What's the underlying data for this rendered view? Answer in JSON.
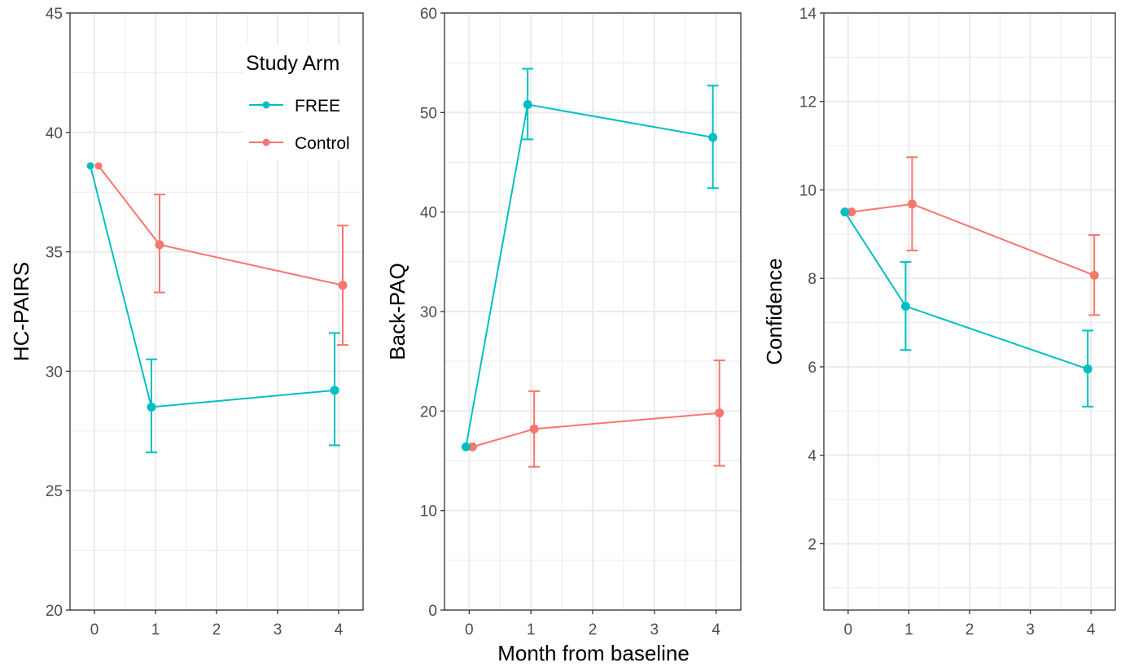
{
  "colors": {
    "free": "#00BFC4",
    "control": "#F8766D",
    "grid": "#EBEBEB",
    "frame": "#333333"
  },
  "legend": {
    "title": "Study Arm",
    "placement": "top-right of first panel",
    "items": [
      {
        "label": "FREE",
        "color": "#00BFC4"
      },
      {
        "label": "Control",
        "color": "#F8766D"
      }
    ]
  },
  "shared_x_title": "Month from baseline",
  "chart_data": [
    {
      "type": "line",
      "ylabel": "HC-PAIRS",
      "xlabel": "",
      "x_ticks": [
        "0",
        "1",
        "2",
        "3",
        "4"
      ],
      "xlim": [
        -0.4,
        4.4
      ],
      "ylim": [
        20,
        45
      ],
      "y_ticks": [
        "20",
        "25",
        "30",
        "35",
        "40",
        "45"
      ],
      "grid": true,
      "error_bars": true,
      "series": [
        {
          "name": "FREE",
          "color": "#00BFC4",
          "x": [
            0,
            1,
            4
          ],
          "y": [
            38.6,
            28.5,
            29.2
          ],
          "err_low": [
            null,
            26.6,
            26.9
          ],
          "err_high": [
            null,
            30.5,
            31.6
          ]
        },
        {
          "name": "Control",
          "color": "#F8766D",
          "x": [
            0,
            1,
            4
          ],
          "y": [
            38.6,
            35.3,
            33.6
          ],
          "err_low": [
            null,
            33.3,
            31.1
          ],
          "err_high": [
            null,
            37.4,
            36.1
          ]
        }
      ]
    },
    {
      "type": "line",
      "ylabel": "Back-PAQ",
      "xlabel": "Month from baseline",
      "x_ticks": [
        "0",
        "1",
        "2",
        "3",
        "4"
      ],
      "xlim": [
        -0.4,
        4.4
      ],
      "ylim": [
        0,
        60
      ],
      "y_ticks": [
        "0",
        "10",
        "20",
        "30",
        "40",
        "50",
        "60"
      ],
      "grid": true,
      "error_bars": true,
      "series": [
        {
          "name": "FREE",
          "color": "#00BFC4",
          "x": [
            0,
            1,
            4
          ],
          "y": [
            16.4,
            50.8,
            47.5
          ],
          "err_low": [
            null,
            47.3,
            42.4
          ],
          "err_high": [
            null,
            54.4,
            52.7
          ]
        },
        {
          "name": "Control",
          "color": "#F8766D",
          "x": [
            0,
            1,
            4
          ],
          "y": [
            16.4,
            18.2,
            19.8
          ],
          "err_low": [
            null,
            14.4,
            14.5
          ],
          "err_high": [
            null,
            22.0,
            25.1
          ]
        }
      ]
    },
    {
      "type": "line",
      "ylabel": "Confidence",
      "xlabel": "",
      "x_ticks": [
        "0",
        "1",
        "2",
        "3",
        "4"
      ],
      "xlim": [
        -0.4,
        4.4
      ],
      "ylim": [
        0.5,
        14
      ],
      "y_ticks": [
        "2",
        "4",
        "6",
        "8",
        "10",
        "12",
        "14"
      ],
      "grid": true,
      "error_bars": true,
      "series": [
        {
          "name": "FREE",
          "color": "#00BFC4",
          "x": [
            0,
            1,
            4
          ],
          "y": [
            9.5,
            7.37,
            5.95
          ],
          "err_low": [
            null,
            6.38,
            5.1
          ],
          "err_high": [
            null,
            8.37,
            6.82
          ]
        },
        {
          "name": "Control",
          "color": "#F8766D",
          "x": [
            0,
            1,
            4
          ],
          "y": [
            9.5,
            9.68,
            8.07
          ],
          "err_low": [
            null,
            8.63,
            7.17
          ],
          "err_high": [
            null,
            10.74,
            8.98
          ]
        }
      ]
    }
  ]
}
